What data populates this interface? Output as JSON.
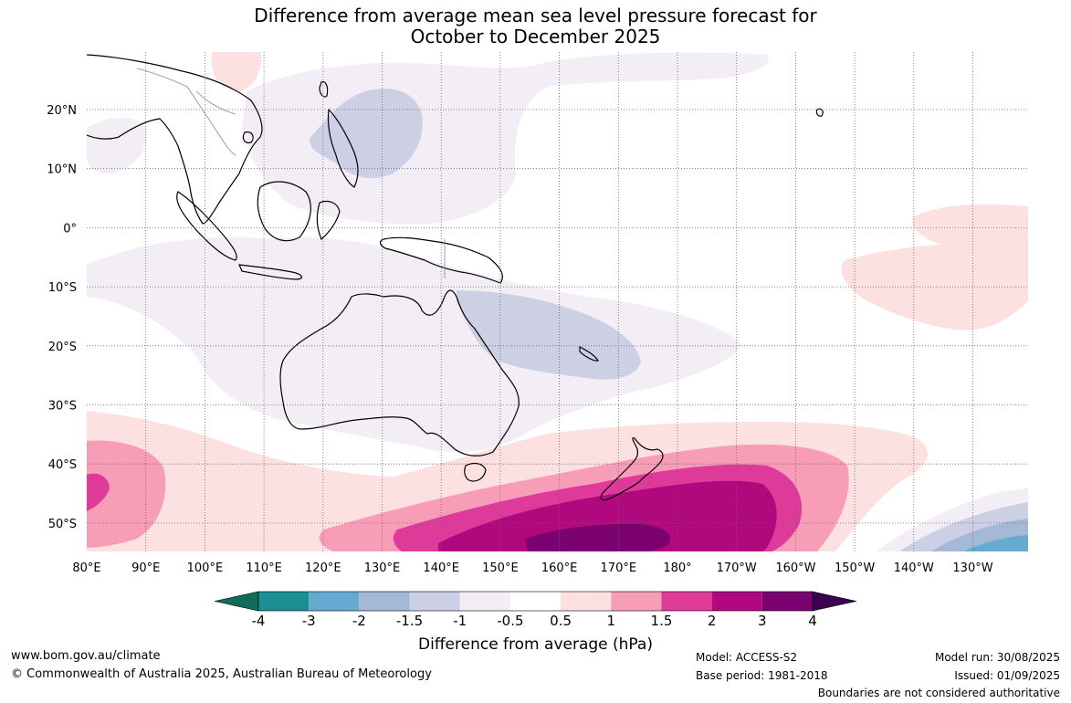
{
  "title": {
    "line1": "Difference from average mean sea level pressure forecast for",
    "line2": "October to December 2025"
  },
  "axes": {
    "lat_labels": [
      "20°N",
      "10°N",
      "0°",
      "10°S",
      "20°S",
      "30°S",
      "40°S",
      "50°S"
    ],
    "lon_labels": [
      "80°E",
      "90°E",
      "100°E",
      "110°E",
      "120°E",
      "130°E",
      "140°E",
      "150°E",
      "160°E",
      "170°E",
      "180°",
      "170°W",
      "160°W",
      "150°W",
      "140°W",
      "130°W"
    ]
  },
  "colorbar": {
    "title": "Difference from average (hPa)",
    "labels": [
      "-4",
      "-3",
      "-2",
      "-1.5",
      "-1",
      "-0.5",
      "0.5",
      "1",
      "1.5",
      "2",
      "3",
      "4"
    ],
    "colors": [
      "#0f6b5a",
      "#1b9094",
      "#66aad0",
      "#a4b8d8",
      "#cdd0e4",
      "#f3eef6",
      "#ffffff",
      "#fde0e0",
      "#f89db8",
      "#dd3a9a",
      "#b0097d",
      "#7b0070",
      "#3c0050"
    ]
  },
  "footer": {
    "url": "www.bom.gov.au/climate",
    "copyright": "© Commonwealth of Australia 2025, Australian Bureau of Meteorology",
    "model": "Model: ACCESS-S2",
    "base_period": "Base period: 1981-2018",
    "model_run": "Model run: 30/08/2025",
    "issued": "Issued: 01/09/2025",
    "disclaimer": "Boundaries are not considered authoritative"
  }
}
